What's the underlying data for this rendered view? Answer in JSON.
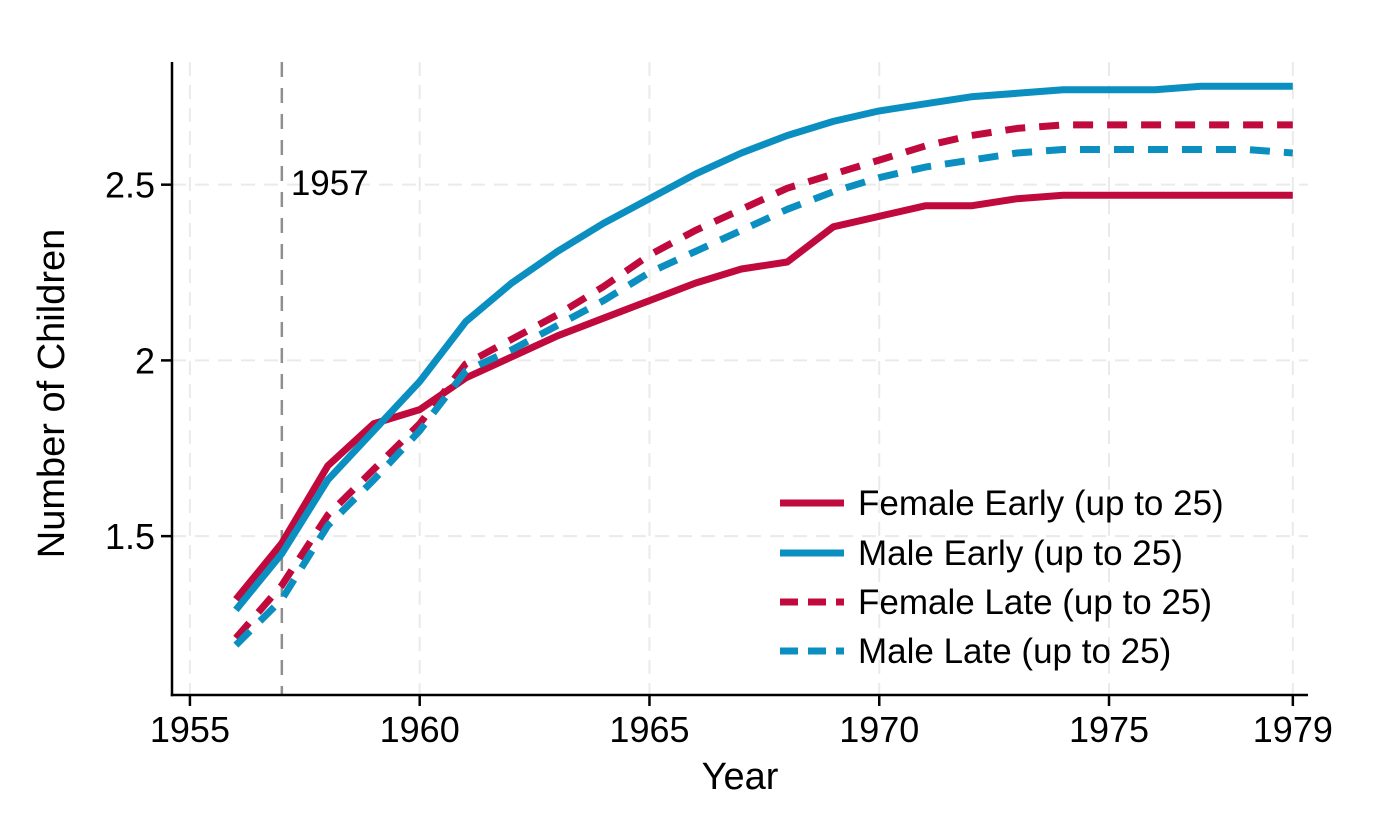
{
  "chart_data": {
    "type": "line",
    "title": "",
    "xlabel": "Year",
    "ylabel": "Number of Children",
    "x": [
      1956,
      1957,
      1958,
      1959,
      1960,
      1961,
      1962,
      1963,
      1964,
      1965,
      1966,
      1967,
      1968,
      1969,
      1970,
      1971,
      1972,
      1973,
      1974,
      1975,
      1976,
      1977,
      1978,
      1979
    ],
    "series": [
      {
        "name": "Female Early (up to 25)",
        "style": "solid",
        "color": "#c0093c",
        "values": [
          1.32,
          1.48,
          1.7,
          1.82,
          1.86,
          1.95,
          2.01,
          2.07,
          2.12,
          2.17,
          2.22,
          2.26,
          2.28,
          2.38,
          2.41,
          2.44,
          2.44,
          2.46,
          2.47,
          2.47,
          2.47,
          2.47,
          2.47,
          2.47
        ]
      },
      {
        "name": "Male Early (up to 25)",
        "style": "solid",
        "color": "#0b8fc1",
        "values": [
          1.29,
          1.45,
          1.66,
          1.8,
          1.94,
          2.11,
          2.22,
          2.31,
          2.39,
          2.46,
          2.53,
          2.59,
          2.64,
          2.68,
          2.71,
          2.73,
          2.75,
          2.76,
          2.77,
          2.77,
          2.77,
          2.78,
          2.78,
          2.78
        ]
      },
      {
        "name": "Female Late (up to 25)",
        "style": "dashed",
        "color": "#c0093c",
        "values": [
          1.21,
          1.36,
          1.56,
          1.69,
          1.82,
          1.99,
          2.06,
          2.13,
          2.21,
          2.3,
          2.37,
          2.43,
          2.49,
          2.53,
          2.57,
          2.61,
          2.64,
          2.66,
          2.67,
          2.67,
          2.67,
          2.67,
          2.67,
          2.67
        ]
      },
      {
        "name": "Male Late (up to 25)",
        "style": "dashed",
        "color": "#0b8fc1",
        "values": [
          1.19,
          1.32,
          1.53,
          1.66,
          1.8,
          1.97,
          2.03,
          2.1,
          2.17,
          2.25,
          2.31,
          2.37,
          2.43,
          2.48,
          2.52,
          2.55,
          2.57,
          2.59,
          2.6,
          2.6,
          2.6,
          2.6,
          2.6,
          2.59
        ]
      }
    ],
    "x_ticks": [
      {
        "value": 1955,
        "label": "1955"
      },
      {
        "value": 1960,
        "label": "1960"
      },
      {
        "value": 1965,
        "label": "1965"
      },
      {
        "value": 1970,
        "label": "1970"
      },
      {
        "value": 1975,
        "label": "1975"
      },
      {
        "value": 1979,
        "label": "1979"
      }
    ],
    "y_ticks": [
      {
        "value": 1.5,
        "label": "1.5"
      },
      {
        "value": 2,
        "label": "2"
      },
      {
        "value": 2.5,
        "label": "2.5"
      }
    ],
    "xlim": [
      1954.61,
      1979.33
    ],
    "ylim": [
      1.048,
      2.849
    ],
    "grid": true,
    "legend_position": "inside-lower-right",
    "annotations": [
      {
        "type": "vline",
        "x": 1957,
        "label": "1957"
      }
    ],
    "colors": {
      "female": "#c0093c",
      "male": "#0b8fc1",
      "gridline": "#eaeaea",
      "event_line": "#8f8f8f",
      "axis": "#000000",
      "background": "#ffffff"
    }
  }
}
